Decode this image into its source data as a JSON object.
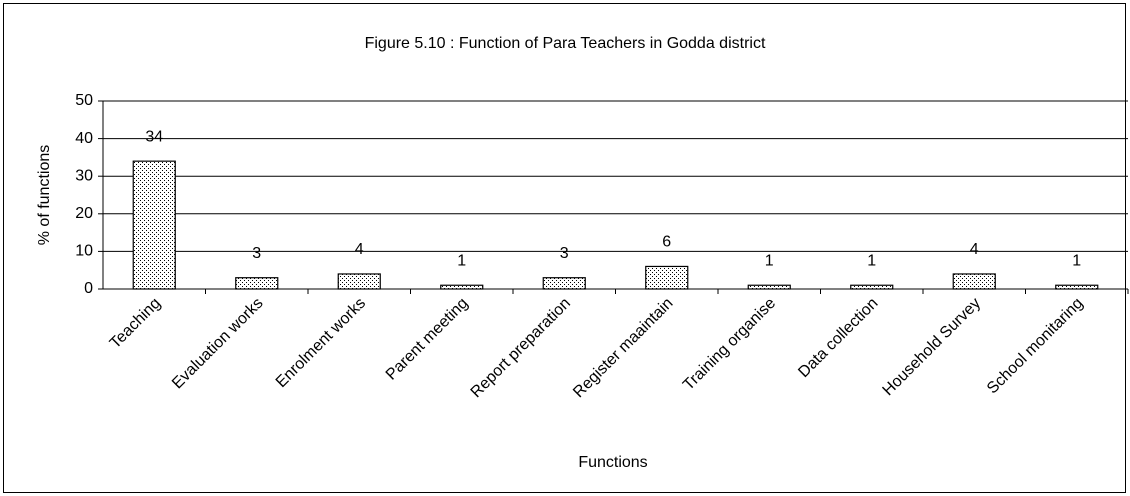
{
  "chart_data": {
    "type": "bar",
    "title": "Figure 5.10 : Function of Para Teachers in Godda district",
    "x_label": "Functions",
    "y_label": "% of functions",
    "categories": [
      "Teaching",
      "Evaluation works",
      "Enrolment works",
      "Parent meeting",
      "Report preparation",
      "Register maaintain",
      "Training organise",
      "Data collection",
      "Household Survey",
      "School monitaring"
    ],
    "values": [
      34,
      3,
      4,
      1,
      3,
      6,
      1,
      1,
      4,
      1
    ],
    "ylim": [
      0,
      50
    ],
    "yticks": [
      0,
      10,
      20,
      30,
      40,
      50
    ],
    "grid": true
  }
}
